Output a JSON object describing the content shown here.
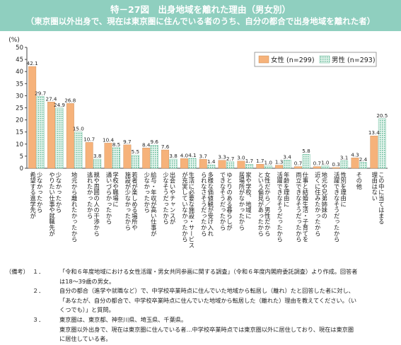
{
  "header": {
    "title": "特－27図　出身地域を離れた理由（男女別）",
    "subtitle": "（東京圏以外出身で、現在は東京圏に住んでいる者のうち、自分の都合で出身地域を離れた者）"
  },
  "colors": {
    "header_bg": "#8fcfbf",
    "female": "#f6b27a",
    "male_fill": "#e6f5ee",
    "male_hatch": "#56b48f",
    "axis": "#444444"
  },
  "chart_data": {
    "type": "bar",
    "ylabel": "(%)",
    "ylim": [
      0,
      50
    ],
    "yticks": [
      0,
      5,
      10,
      15,
      20,
      25,
      30,
      35,
      40,
      45,
      50
    ],
    "grid": false,
    "legend_position": "top-right",
    "categories": [
      [
        "少なかったから",
        "希望する進学先が"
      ],
      [
        "少なかったから",
        "やりたい仕事や就職先が"
      ],
      [
        "地元から離れたかったから"
      ],
      [
        "親や周囲の人の干渉から",
        "逃れたかったから"
      ],
      [
        "学校や職場に",
        "通いづらかったから"
      ],
      [
        "若者が楽しめる場所や",
        "施設が少なかったから"
      ],
      [
        "給与・年収が高い仕事が",
        "少なかったから"
      ],
      [
        "出会いやチャンスが",
        "少なそうだったから"
      ],
      [
        "生活に必要な施設・サービス",
        "が充実していなかったから"
      ],
      [
        "多様な価値観が受け入れ",
        "られなさそうだったから"
      ],
      [
        "ゆとりのある暮らしが",
        "できなそうだったから"
      ],
      [
        "家や学校、地域に",
        "居場所がなかったから"
      ],
      [
        "女性だから／男性だから",
        "という偏見があったから"
      ],
      [
        "年齢を理由に",
        "活躍できなそうだったから"
      ],
      [
        "仕事と結婚生活・子育てを",
        "両立できなそうだったから"
      ],
      [
        "地元や兄弟姉妹の",
        "近くに住みたかったから"
      ],
      [
        "性別を理由に",
        "活躍できなそうだったから"
      ],
      [
        "その他"
      ],
      [
        "この中に当てはまる",
        "理由はない"
      ]
    ],
    "series": [
      {
        "name": "女性 (n=299)",
        "values": [
          42.1,
          27.4,
          26.8,
          10.7,
          10.4,
          9.7,
          8.4,
          7.6,
          4.0,
          3.7,
          3.3,
          3.0,
          1.7,
          1.3,
          0.7,
          0.7,
          0.3,
          4.3,
          13.4
        ]
      },
      {
        "name": "男性 (n=293)",
        "values": [
          29.7,
          24.9,
          15.0,
          3.8,
          8.5,
          5.5,
          9.6,
          3.8,
          4.1,
          1.4,
          2.7,
          1.7,
          1.0,
          3.4,
          5.8,
          1.0,
          3.1,
          2.4,
          20.5
        ]
      }
    ]
  },
  "notes": {
    "label": "（備考）",
    "items": [
      {
        "num": "１．",
        "lines": [
          "「令和６年度地域における女性活躍・男女共同参画に関する調査」（令和６年度内閣府委託調査）より作成。回答者",
          "は18～39歳の男女。"
        ]
      },
      {
        "num": "２．",
        "lines": [
          "自分の都合（進学や就職など）で、中学校卒業時点に住んでいた地域から転居し（離れ）たと回答した者に対し、",
          "「あなたが、自分の都合で、中学校卒業時点に住んでいた地域から転居した（離れた）理由を教えてください。（い",
          "くつでも）」と質問。"
        ]
      },
      {
        "num": "３．",
        "lines": [
          "東京圏は、東京都、神奈川県、埼玉県、千葉県。",
          "東京圏以外出身で、現在は東京圏に住んでいる者…中学校卒業時点では東京圏以外に居住しており、現在は東京圏",
          "に居住している者。"
        ]
      }
    ]
  }
}
